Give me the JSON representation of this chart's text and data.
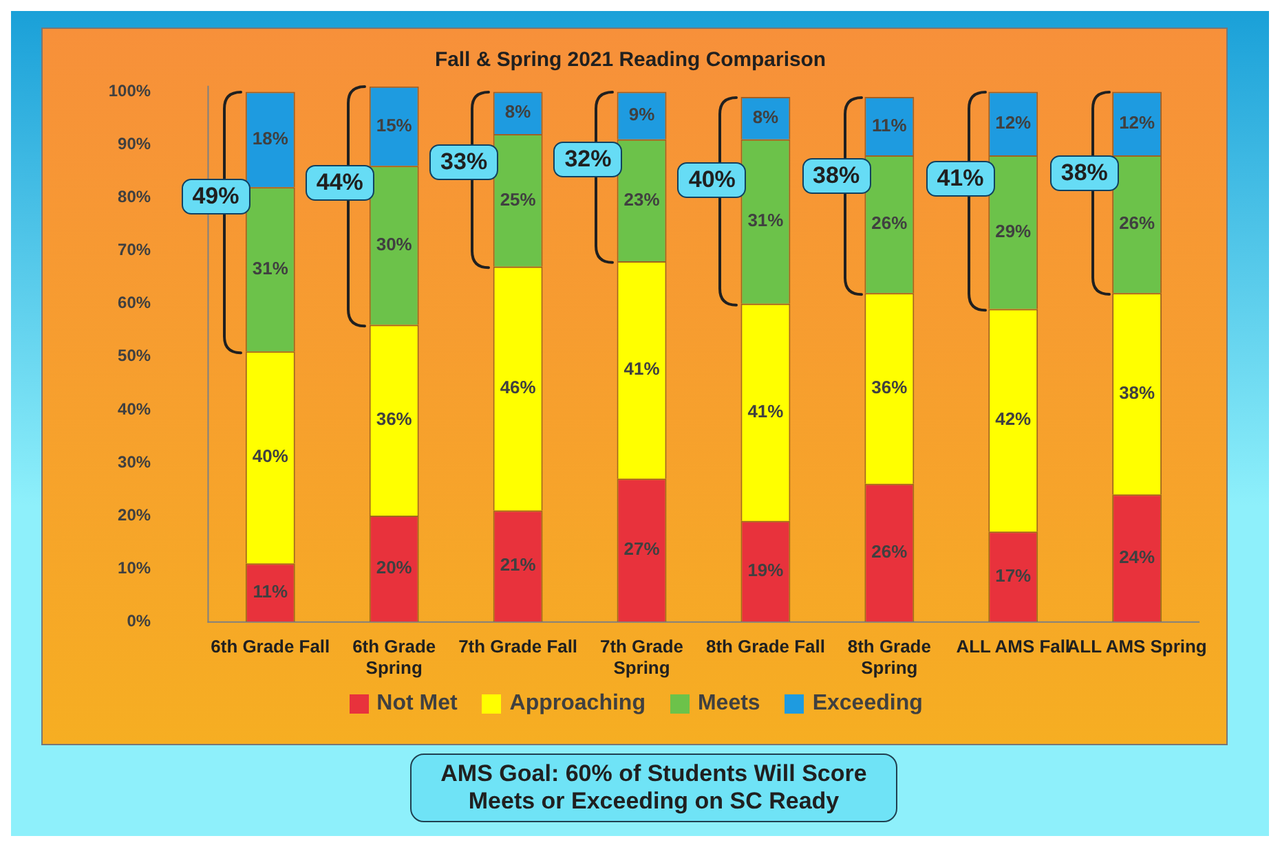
{
  "chart_data": {
    "type": "bar",
    "title": "Fall & Spring 2021 Reading Comparison",
    "stacked": true,
    "categories": [
      "6th Grade Fall",
      "6th Grade Spring",
      "7th Grade Fall",
      "7th Grade Spring",
      "8th Grade Fall",
      "8th Grade Spring",
      "ALL AMS Fall",
      "ALL AMS Spring"
    ],
    "series": [
      {
        "name": "Not Met",
        "color": "#e8323c",
        "values": [
          11,
          20,
          21,
          27,
          19,
          26,
          17,
          24
        ],
        "value_labels": [
          "11%",
          "20%",
          "21%",
          "27%",
          "19%",
          "26%",
          "17%",
          "24%"
        ]
      },
      {
        "name": "Approaching",
        "color": "#ffff00",
        "values": [
          40,
          36,
          46,
          41,
          41,
          36,
          42,
          38
        ],
        "value_labels": [
          "40%",
          "36%",
          "46%",
          "41%",
          "41%",
          "36%",
          "42%",
          "38%"
        ]
      },
      {
        "name": "Meets",
        "color": "#6cc24a",
        "values": [
          31,
          30,
          25,
          23,
          31,
          26,
          29,
          26
        ],
        "value_labels": [
          "31%",
          "30%",
          "25%",
          "23%",
          "31%",
          "26%",
          "29%",
          "26%"
        ]
      },
      {
        "name": "Exceeding",
        "color": "#1e9be0",
        "values": [
          18,
          15,
          8,
          9,
          8,
          11,
          12,
          12
        ],
        "value_labels": [
          "18%",
          "15%",
          "8%",
          "9%",
          "8%",
          "11%",
          "12%",
          "12%"
        ]
      }
    ],
    "ylim": [
      0,
      101
    ],
    "yticks": [
      {
        "value": 0,
        "label": "0%"
      },
      {
        "value": 10,
        "label": "10%"
      },
      {
        "value": 20,
        "label": "20%"
      },
      {
        "value": 30,
        "label": "30%"
      },
      {
        "value": 40,
        "label": "40%"
      },
      {
        "value": 50,
        "label": "50%"
      },
      {
        "value": 60,
        "label": "60%"
      },
      {
        "value": 70,
        "label": "70%"
      },
      {
        "value": 80,
        "label": "80%"
      },
      {
        "value": 90,
        "label": "90%"
      },
      {
        "value": 100,
        "label": "100%"
      }
    ],
    "legend": "bottom",
    "annotations": [
      "49%",
      "44%",
      "33%",
      "32%",
      "40%",
      "38%",
      "41%",
      "38%",
      "AMS Goal: 60% of Students Will Score Meets or Exceeding on SC Ready"
    ]
  }
}
